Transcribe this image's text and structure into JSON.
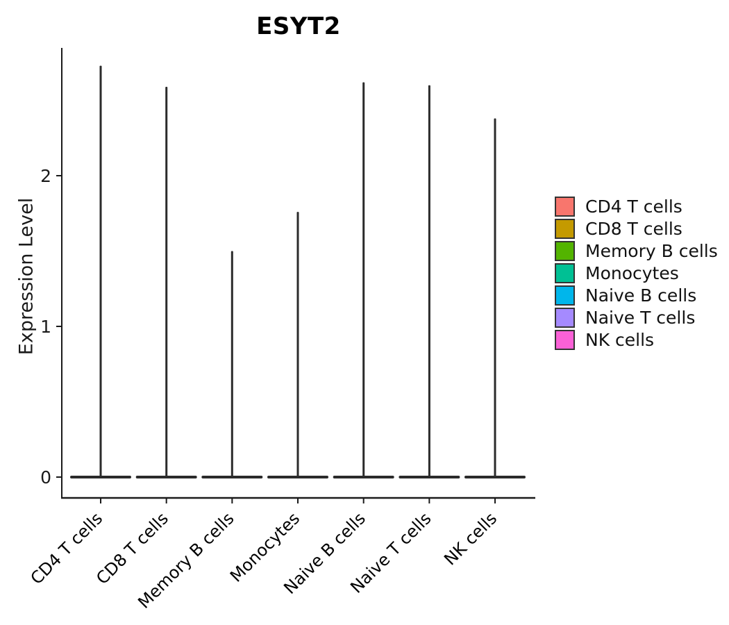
{
  "title": "ESYT2",
  "axes": {
    "y_label": "Expression Level",
    "y_tick_labels": [
      "0",
      "1",
      "2"
    ]
  },
  "chart_data": {
    "type": "violin",
    "title": "ESYT2",
    "xlabel": "",
    "ylabel": "Expression Level",
    "ylim": [
      0,
      2.85
    ],
    "y_ticks": [
      0,
      1,
      2
    ],
    "grid": "off",
    "legend_position": "right",
    "categories": [
      "CD4 T cells",
      "CD8 T cells",
      "Memory B cells",
      "Monocytes",
      "Naive B cells",
      "Naive T cells",
      "NK cells"
    ],
    "series": [
      {
        "name": "CD4 T cells",
        "color": "#F8766D",
        "max_expression": 2.73,
        "bulk_of_density_at": 0
      },
      {
        "name": "CD8 T cells",
        "color": "#C49A00",
        "max_expression": 2.59,
        "bulk_of_density_at": 0
      },
      {
        "name": "Memory B cells",
        "color": "#53B400",
        "max_expression": 1.5,
        "bulk_of_density_at": 0
      },
      {
        "name": "Monocytes",
        "color": "#00C094",
        "max_expression": 1.76,
        "bulk_of_density_at": 0
      },
      {
        "name": "Naive B cells",
        "color": "#00B6EB",
        "max_expression": 2.62,
        "bulk_of_density_at": 0
      },
      {
        "name": "Naive T cells",
        "color": "#A58AFF",
        "max_expression": 2.6,
        "bulk_of_density_at": 0
      },
      {
        "name": "NK cells",
        "color": "#FB61D7",
        "max_expression": 2.38,
        "bulk_of_density_at": 0
      }
    ],
    "shape_note": "Each violin is extremely wide at expression 0 (flat base bar) with an ultra-thin spike rising to its max expression value",
    "violin_outline_color": "#2b2b2b",
    "axis_color": "#1a1a1a"
  }
}
